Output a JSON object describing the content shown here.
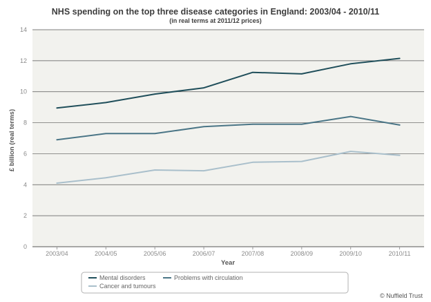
{
  "chart_data": {
    "type": "line",
    "title": "NHS spending on the top three disease categories in England: 2003/04 - 2010/11",
    "subtitle": "(in real terms at 2011/12 prices)",
    "xlabel": "Year",
    "ylabel": "£ billion (real terms)",
    "categories": [
      "2003/04",
      "2004/05",
      "2005/06",
      "2006/07",
      "2007/08",
      "2008/09",
      "2009/10",
      "2010/11"
    ],
    "ylim": [
      0,
      14
    ],
    "yticks": [
      "0",
      "2",
      "4",
      "6",
      "8",
      "10",
      "12",
      "14"
    ],
    "grid": true,
    "legend_position": "bottom",
    "series": [
      {
        "name": "Mental disorders",
        "color": "#1f4e5a",
        "values": [
          8.95,
          9.3,
          9.85,
          10.25,
          11.25,
          11.15,
          11.8,
          12.15
        ]
      },
      {
        "name": "Problems with circulation",
        "color": "#4a7586",
        "values": [
          6.9,
          7.3,
          7.3,
          7.75,
          7.9,
          7.9,
          8.4,
          7.85
        ]
      },
      {
        "name": "Cancer and tumours",
        "color": "#a9bfcb",
        "values": [
          4.1,
          4.45,
          4.95,
          4.9,
          5.45,
          5.5,
          6.15,
          5.9
        ]
      }
    ],
    "plot_background": "#f2f2ee",
    "gridline_color": "#555555"
  },
  "credit": "© Nuffield Trust"
}
